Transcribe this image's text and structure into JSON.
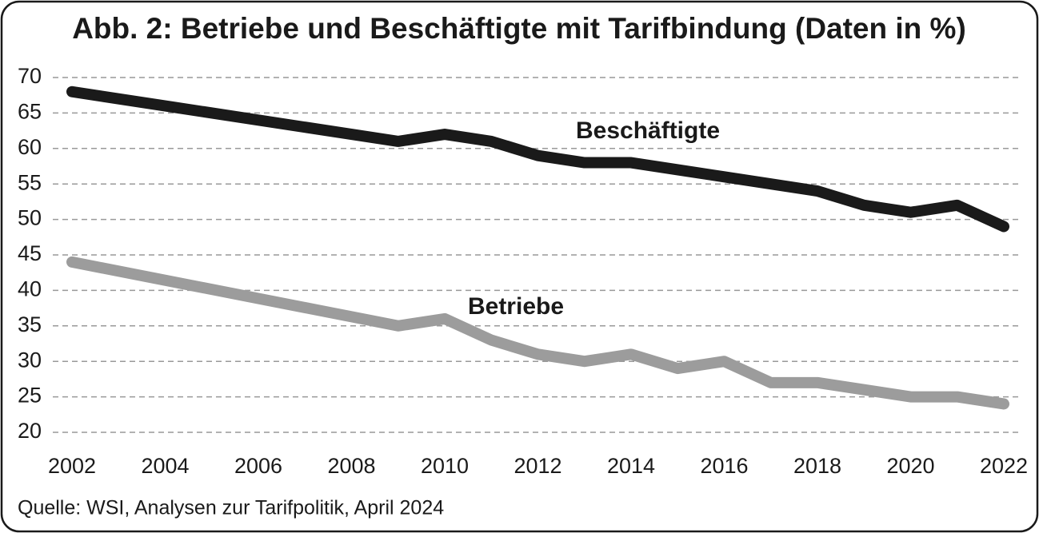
{
  "chart_data": {
    "type": "line",
    "title": "Abb. 2: Betriebe und Beschäftigte mit Tarifbindung (Daten in %)",
    "source": "Quelle: WSI, Analysen zur Tarifpolitik, April 2024",
    "x": [
      2002,
      2009,
      2010,
      2011,
      2012,
      2013,
      2014,
      2015,
      2016,
      2017,
      2018,
      2019,
      2020,
      2021,
      2022
    ],
    "series": [
      {
        "name": "Beschäftigte",
        "color": "#1a1a1a",
        "values": [
          68,
          61,
          62,
          61,
          59,
          58,
          58,
          57,
          56,
          55,
          54,
          52,
          51,
          52,
          49
        ]
      },
      {
        "name": "Betriebe",
        "color": "#9c9c9c",
        "values": [
          44,
          35,
          36,
          33,
          31,
          30,
          31,
          29,
          30,
          27,
          27,
          26,
          25,
          25,
          24
        ]
      }
    ],
    "xlim": [
      2002,
      2022
    ],
    "xticks": [
      2002,
      2004,
      2006,
      2008,
      2010,
      2012,
      2014,
      2016,
      2018,
      2020,
      2022
    ],
    "ylim": [
      20,
      70
    ],
    "yticks": [
      20,
      25,
      30,
      35,
      40,
      45,
      50,
      55,
      60,
      65,
      70
    ],
    "grid": true
  }
}
